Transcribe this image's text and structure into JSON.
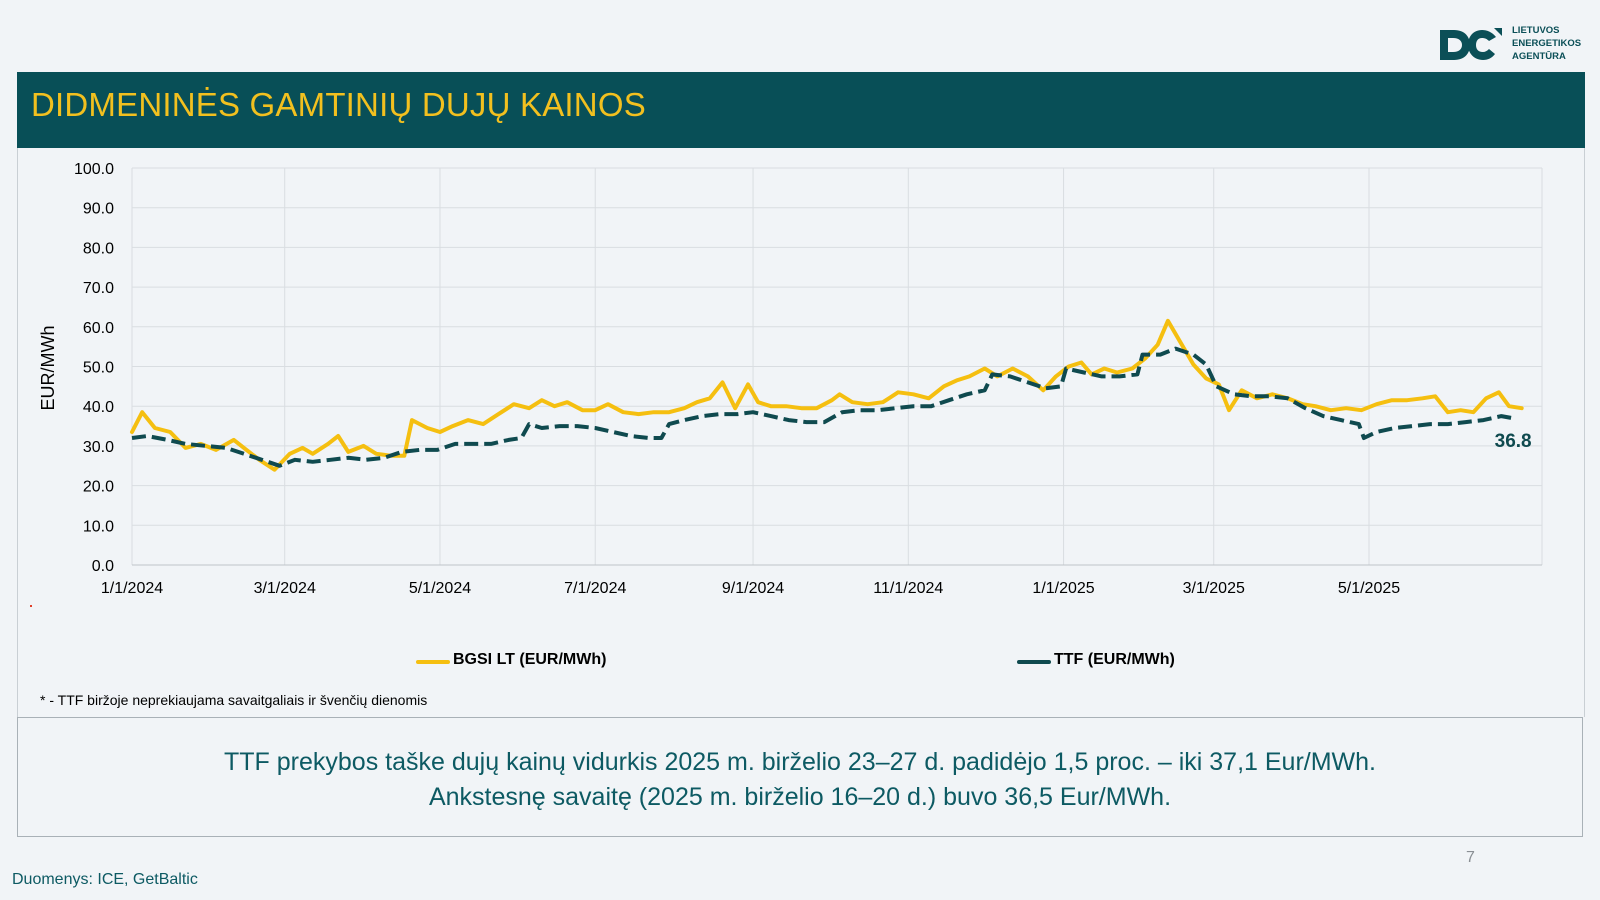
{
  "header": {
    "title": "DIDMENINĖS GAMTINIŲ DUJŲ KAINOS"
  },
  "logo": {
    "lines": [
      "LIETUVOS",
      "ENERGETIKOS",
      "AGENTŪRA"
    ],
    "icon": "lea-logo-icon",
    "color": "#0b4f57"
  },
  "colors": {
    "header_bg": "#084f57",
    "title": "#f2c01f",
    "bgsi": "#f5bf10",
    "ttf": "#0f4a4f",
    "summary_text": "#0d5a63"
  },
  "chart_data": {
    "type": "line",
    "title": "",
    "xlabel": "",
    "ylabel": "EUR/MWh",
    "ylim": [
      0,
      100
    ],
    "yticks": [
      "100.0",
      "90.0",
      "80.0",
      "70.0",
      "60.0",
      "50.0",
      "40.0",
      "30.0",
      "20.0",
      "10.0",
      "0.0"
    ],
    "xlim": [
      "2024-01-01",
      "2025-06-30"
    ],
    "xticks": [
      {
        "date": "2024-01-01",
        "label": "1/1/2024"
      },
      {
        "date": "2024-03-01",
        "label": "3/1/2024"
      },
      {
        "date": "2024-05-01",
        "label": "5/1/2024"
      },
      {
        "date": "2024-07-01",
        "label": "7/1/2024"
      },
      {
        "date": "2024-09-01",
        "label": "9/1/2024"
      },
      {
        "date": "2024-11-01",
        "label": "11/1/2024"
      },
      {
        "date": "2025-01-01",
        "label": "1/1/2025"
      },
      {
        "date": "2025-03-01",
        "label": "3/1/2025"
      },
      {
        "date": "2025-05-01",
        "label": "5/1/2025"
      }
    ],
    "grid": true,
    "legend_position": "bottom",
    "series": [
      {
        "name": "BGSI LT (EUR/MWh)",
        "color": "#f5bf10",
        "style": "solid",
        "points": [
          [
            "2024-01-01",
            33.5
          ],
          [
            "2024-01-05",
            38.5
          ],
          [
            "2024-01-10",
            34.5
          ],
          [
            "2024-01-16",
            33.5
          ],
          [
            "2024-01-22",
            29.5
          ],
          [
            "2024-01-28",
            30.5
          ],
          [
            "2024-02-03",
            29.0
          ],
          [
            "2024-02-10",
            31.5
          ],
          [
            "2024-02-15",
            29.0
          ],
          [
            "2024-02-20",
            26.5
          ],
          [
            "2024-02-26",
            24.0
          ],
          [
            "2024-03-03",
            28.0
          ],
          [
            "2024-03-08",
            29.5
          ],
          [
            "2024-03-12",
            28.0
          ],
          [
            "2024-03-18",
            30.5
          ],
          [
            "2024-03-22",
            32.5
          ],
          [
            "2024-03-26",
            28.5
          ],
          [
            "2024-04-01",
            30.0
          ],
          [
            "2024-04-06",
            28.0
          ],
          [
            "2024-04-12",
            27.5
          ],
          [
            "2024-04-17",
            27.5
          ],
          [
            "2024-04-20",
            36.5
          ],
          [
            "2024-04-26",
            34.5
          ],
          [
            "2024-05-01",
            33.5
          ],
          [
            "2024-05-06",
            35.0
          ],
          [
            "2024-05-12",
            36.5
          ],
          [
            "2024-05-18",
            35.5
          ],
          [
            "2024-05-24",
            38.0
          ],
          [
            "2024-05-30",
            40.5
          ],
          [
            "2024-06-05",
            39.5
          ],
          [
            "2024-06-10",
            41.5
          ],
          [
            "2024-06-15",
            40.0
          ],
          [
            "2024-06-20",
            41.0
          ],
          [
            "2024-06-26",
            39.0
          ],
          [
            "2024-07-01",
            39.0
          ],
          [
            "2024-07-06",
            40.5
          ],
          [
            "2024-07-12",
            38.5
          ],
          [
            "2024-07-18",
            38.0
          ],
          [
            "2024-07-24",
            38.5
          ],
          [
            "2024-07-30",
            38.5
          ],
          [
            "2024-08-05",
            39.5
          ],
          [
            "2024-08-10",
            41.0
          ],
          [
            "2024-08-15",
            42.0
          ],
          [
            "2024-08-20",
            46.0
          ],
          [
            "2024-08-25",
            39.5
          ],
          [
            "2024-08-30",
            45.5
          ],
          [
            "2024-09-03",
            41.0
          ],
          [
            "2024-09-08",
            40.0
          ],
          [
            "2024-09-14",
            40.0
          ],
          [
            "2024-09-20",
            39.5
          ],
          [
            "2024-09-26",
            39.5
          ],
          [
            "2024-10-02",
            41.5
          ],
          [
            "2024-10-05",
            43.0
          ],
          [
            "2024-10-10",
            41.0
          ],
          [
            "2024-10-16",
            40.5
          ],
          [
            "2024-10-22",
            41.0
          ],
          [
            "2024-10-28",
            43.5
          ],
          [
            "2024-11-03",
            43.0
          ],
          [
            "2024-11-09",
            42.0
          ],
          [
            "2024-11-15",
            45.0
          ],
          [
            "2024-11-20",
            46.5
          ],
          [
            "2024-11-25",
            47.5
          ],
          [
            "2024-12-01",
            49.5
          ],
          [
            "2024-12-06",
            47.5
          ],
          [
            "2024-12-12",
            49.5
          ],
          [
            "2024-12-18",
            47.5
          ],
          [
            "2024-12-24",
            44.0
          ],
          [
            "2024-12-29",
            47.5
          ],
          [
            "2025-01-03",
            50.0
          ],
          [
            "2025-01-08",
            51.0
          ],
          [
            "2025-01-12",
            48.0
          ],
          [
            "2025-01-17",
            49.5
          ],
          [
            "2025-01-22",
            48.5
          ],
          [
            "2025-01-28",
            49.5
          ],
          [
            "2025-02-02",
            52.0
          ],
          [
            "2025-02-07",
            55.5
          ],
          [
            "2025-02-11",
            61.5
          ],
          [
            "2025-02-16",
            56.0
          ],
          [
            "2025-02-21",
            50.5
          ],
          [
            "2025-02-26",
            47.0
          ],
          [
            "2025-03-03",
            45.5
          ],
          [
            "2025-03-07",
            39.0
          ],
          [
            "2025-03-12",
            44.0
          ],
          [
            "2025-03-18",
            42.0
          ],
          [
            "2025-03-24",
            43.0
          ],
          [
            "2025-03-30",
            42.0
          ],
          [
            "2025-04-05",
            40.5
          ],
          [
            "2025-04-10",
            40.0
          ],
          [
            "2025-04-16",
            39.0
          ],
          [
            "2025-04-22",
            39.5
          ],
          [
            "2025-04-28",
            39.0
          ],
          [
            "2025-05-04",
            40.5
          ],
          [
            "2025-05-10",
            41.5
          ],
          [
            "2025-05-16",
            41.5
          ],
          [
            "2025-05-22",
            42.0
          ],
          [
            "2025-05-27",
            42.5
          ],
          [
            "2025-06-01",
            38.5
          ],
          [
            "2025-06-06",
            39.0
          ],
          [
            "2025-06-11",
            38.5
          ],
          [
            "2025-06-16",
            42.0
          ],
          [
            "2025-06-21",
            43.5
          ],
          [
            "2025-06-25",
            40.0
          ],
          [
            "2025-06-30",
            39.5
          ]
        ]
      },
      {
        "name": "TTF (EUR/MWh)",
        "color": "#0f4a4f",
        "style": "dashed",
        "last_value_label": "36.8",
        "points": [
          [
            "2024-01-01",
            32.0
          ],
          [
            "2024-01-07",
            32.5
          ],
          [
            "2024-01-15",
            31.5
          ],
          [
            "2024-01-22",
            30.5
          ],
          [
            "2024-01-30",
            30.0
          ],
          [
            "2024-02-07",
            29.5
          ],
          [
            "2024-02-14",
            28.0
          ],
          [
            "2024-02-21",
            26.5
          ],
          [
            "2024-02-28",
            25.0
          ],
          [
            "2024-03-05",
            26.5
          ],
          [
            "2024-03-12",
            26.0
          ],
          [
            "2024-03-19",
            26.5
          ],
          [
            "2024-03-26",
            27.0
          ],
          [
            "2024-04-02",
            26.5
          ],
          [
            "2024-04-09",
            27.0
          ],
          [
            "2024-04-16",
            28.5
          ],
          [
            "2024-04-23",
            29.0
          ],
          [
            "2024-04-30",
            29.0
          ],
          [
            "2024-05-07",
            30.5
          ],
          [
            "2024-05-14",
            30.5
          ],
          [
            "2024-05-21",
            30.5
          ],
          [
            "2024-05-28",
            31.5
          ],
          [
            "2024-06-02",
            32.0
          ],
          [
            "2024-06-05",
            35.5
          ],
          [
            "2024-06-10",
            34.5
          ],
          [
            "2024-06-17",
            35.0
          ],
          [
            "2024-06-24",
            35.0
          ],
          [
            "2024-07-01",
            34.5
          ],
          [
            "2024-07-08",
            33.5
          ],
          [
            "2024-07-15",
            32.5
          ],
          [
            "2024-07-22",
            32.0
          ],
          [
            "2024-07-27",
            32.0
          ],
          [
            "2024-07-30",
            35.5
          ],
          [
            "2024-08-05",
            36.5
          ],
          [
            "2024-08-12",
            37.5
          ],
          [
            "2024-08-19",
            38.0
          ],
          [
            "2024-08-26",
            38.0
          ],
          [
            "2024-09-01",
            38.5
          ],
          [
            "2024-09-08",
            37.5
          ],
          [
            "2024-09-15",
            36.5
          ],
          [
            "2024-09-22",
            36.0
          ],
          [
            "2024-09-29",
            36.0
          ],
          [
            "2024-10-06",
            38.5
          ],
          [
            "2024-10-13",
            39.0
          ],
          [
            "2024-10-20",
            39.0
          ],
          [
            "2024-10-27",
            39.5
          ],
          [
            "2024-11-03",
            40.0
          ],
          [
            "2024-11-10",
            40.0
          ],
          [
            "2024-11-17",
            41.5
          ],
          [
            "2024-11-24",
            43.0
          ],
          [
            "2024-12-01",
            44.0
          ],
          [
            "2024-12-04",
            48.0
          ],
          [
            "2024-12-11",
            47.5
          ],
          [
            "2024-12-18",
            46.0
          ],
          [
            "2024-12-25",
            44.5
          ],
          [
            "2024-12-31",
            45.0
          ],
          [
            "2025-01-02",
            49.5
          ],
          [
            "2025-01-09",
            48.5
          ],
          [
            "2025-01-16",
            47.5
          ],
          [
            "2025-01-23",
            47.5
          ],
          [
            "2025-01-30",
            48.0
          ],
          [
            "2025-02-01",
            53.0
          ],
          [
            "2025-02-08",
            53.0
          ],
          [
            "2025-02-14",
            54.5
          ],
          [
            "2025-02-21",
            53.0
          ],
          [
            "2025-02-26",
            50.5
          ],
          [
            "2025-03-02",
            45.0
          ],
          [
            "2025-03-09",
            43.0
          ],
          [
            "2025-03-16",
            42.5
          ],
          [
            "2025-03-23",
            42.5
          ],
          [
            "2025-03-30",
            42.0
          ],
          [
            "2025-04-06",
            39.5
          ],
          [
            "2025-04-13",
            37.5
          ],
          [
            "2025-04-20",
            36.5
          ],
          [
            "2025-04-27",
            35.5
          ],
          [
            "2025-04-29",
            32.0
          ],
          [
            "2025-05-04",
            33.5
          ],
          [
            "2025-05-11",
            34.5
          ],
          [
            "2025-05-18",
            35.0
          ],
          [
            "2025-05-25",
            35.5
          ],
          [
            "2025-06-01",
            35.5
          ],
          [
            "2025-06-08",
            36.0
          ],
          [
            "2025-06-15",
            36.5
          ],
          [
            "2025-06-22",
            37.5
          ],
          [
            "2025-06-28",
            36.8
          ]
        ]
      }
    ]
  },
  "legend": {
    "bgsi_label": "BGSI LT (EUR/MWh)",
    "ttf_label": "TTF (EUR/MWh)"
  },
  "footnote": "* - TTF biržoje neprekiaujama savaitgaliais ir švenčių dienomis",
  "summary": {
    "line1": "TTF prekybos taške dujų kainų vidurkis 2025 m. birželio 23–27 d. padidėjo 1,5 proc. – iki 37,1 Eur/MWh.",
    "line2": "Ankstesnę savaitę (2025 m. birželio 16–20 d.) buvo 36,5 Eur/MWh."
  },
  "page_number": "7",
  "source": "Duomenys: ICE, GetBaltic"
}
